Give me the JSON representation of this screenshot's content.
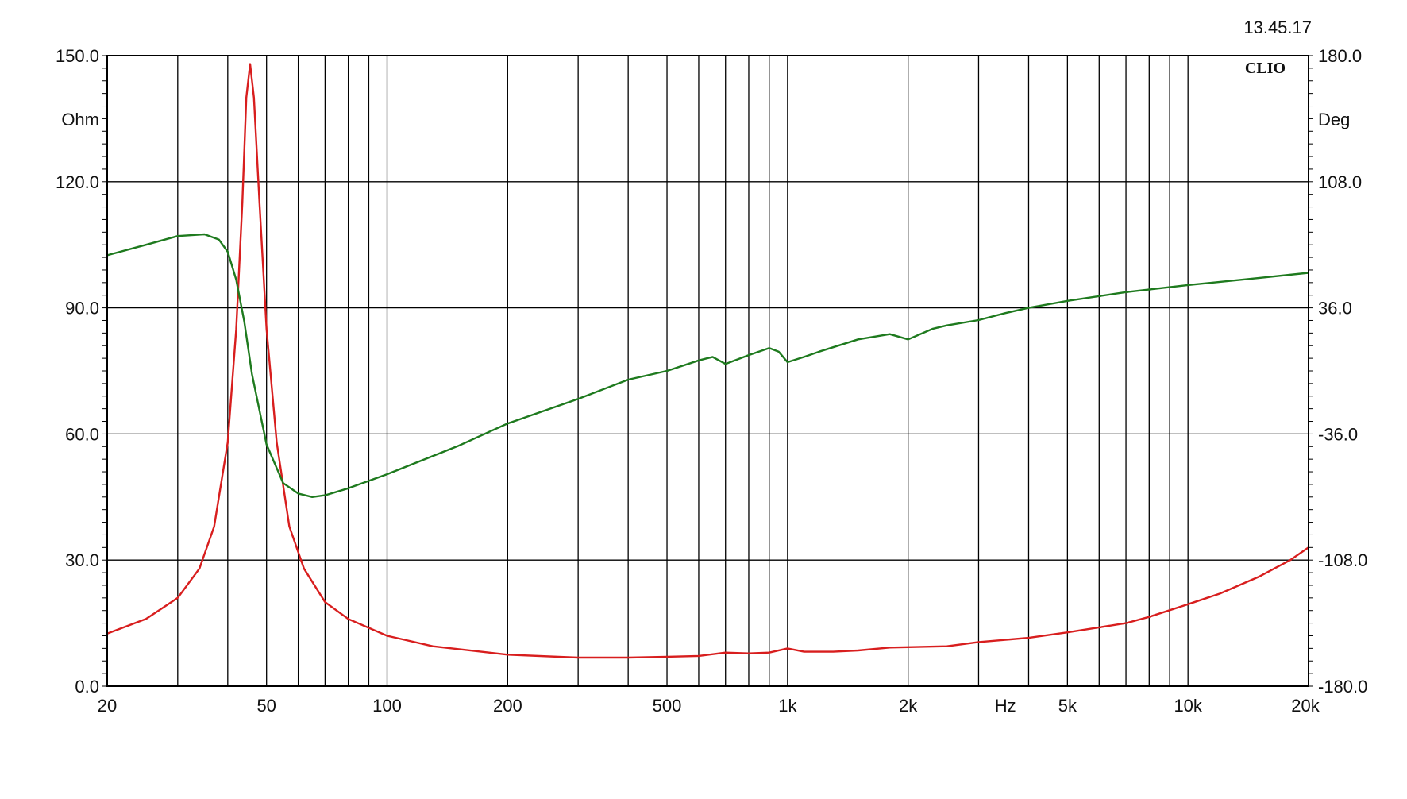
{
  "timestamp": "13.45.17",
  "brand": "CLIO",
  "chart_data": {
    "type": "line",
    "x_scale": "log",
    "xlim": [
      20,
      20000
    ],
    "x_unit": "Hz",
    "x_tick_labels": [
      {
        "value": 20,
        "label": "20"
      },
      {
        "value": 50,
        "label": "50"
      },
      {
        "value": 100,
        "label": "100"
      },
      {
        "value": 200,
        "label": "200"
      },
      {
        "value": 500,
        "label": "500"
      },
      {
        "value": 1000,
        "label": "1k"
      },
      {
        "value": 2000,
        "label": "2k"
      },
      {
        "value": 5000,
        "label": "5k"
      },
      {
        "value": 10000,
        "label": "10k"
      },
      {
        "value": 20000,
        "label": "20k"
      }
    ],
    "x_unit_at": 3500,
    "x_gridlines": [
      30,
      40,
      50,
      60,
      70,
      80,
      90,
      100,
      200,
      300,
      400,
      500,
      600,
      700,
      800,
      900,
      1000,
      2000,
      3000,
      4000,
      5000,
      6000,
      7000,
      8000,
      9000,
      10000
    ],
    "y_left": {
      "unit": "Ohm",
      "ylim": [
        0,
        150
      ],
      "ticks": [
        "0.0",
        "30.0",
        "60.0",
        "90.0",
        "120.0",
        "150.0"
      ],
      "tick_values": [
        0,
        30,
        60,
        90,
        120,
        150
      ]
    },
    "y_right": {
      "unit": "Deg",
      "ylim": [
        -180,
        180
      ],
      "ticks": [
        "-180.0",
        "-108.0",
        "-36.0",
        "36.0",
        "108.0",
        "180.0"
      ],
      "tick_values": [
        -180,
        -108,
        -36,
        36,
        108,
        180
      ]
    },
    "grid": true,
    "series": [
      {
        "axis": "left",
        "color": "#d81e1e",
        "points": [
          [
            20,
            12.5
          ],
          [
            25,
            16
          ],
          [
            30,
            21
          ],
          [
            34,
            28
          ],
          [
            37,
            38
          ],
          [
            40,
            58
          ],
          [
            42,
            85
          ],
          [
            43.5,
            115
          ],
          [
            44.5,
            140
          ],
          [
            45.5,
            148
          ],
          [
            46.5,
            140
          ],
          [
            48,
            115
          ],
          [
            50,
            85
          ],
          [
            53,
            58
          ],
          [
            57,
            38
          ],
          [
            62,
            28
          ],
          [
            70,
            20
          ],
          [
            80,
            16
          ],
          [
            100,
            12
          ],
          [
            130,
            9.5
          ],
          [
            200,
            7.5
          ],
          [
            300,
            6.8
          ],
          [
            400,
            6.8
          ],
          [
            500,
            7
          ],
          [
            600,
            7.2
          ],
          [
            700,
            8
          ],
          [
            800,
            7.8
          ],
          [
            900,
            8
          ],
          [
            1000,
            9
          ],
          [
            1100,
            8.2
          ],
          [
            1300,
            8.2
          ],
          [
            1500,
            8.5
          ],
          [
            1800,
            9.2
          ],
          [
            2000,
            9.3
          ],
          [
            2500,
            9.5
          ],
          [
            3000,
            10.5
          ],
          [
            4000,
            11.5
          ],
          [
            5000,
            12.8
          ],
          [
            6000,
            14
          ],
          [
            7000,
            15
          ],
          [
            8000,
            16.5
          ],
          [
            10000,
            19.5
          ],
          [
            12000,
            22
          ],
          [
            15000,
            26
          ],
          [
            18000,
            30
          ],
          [
            20000,
            33
          ]
        ]
      },
      {
        "axis": "right",
        "color": "#1e7a1e",
        "points": [
          [
            20,
            66
          ],
          [
            25,
            72
          ],
          [
            30,
            77
          ],
          [
            35,
            78
          ],
          [
            38,
            75
          ],
          [
            40,
            68
          ],
          [
            42,
            52
          ],
          [
            44,
            28
          ],
          [
            46,
            -2
          ],
          [
            50,
            -42
          ],
          [
            55,
            -64
          ],
          [
            60,
            -70
          ],
          [
            65,
            -72
          ],
          [
            70,
            -71
          ],
          [
            80,
            -67
          ],
          [
            100,
            -59
          ],
          [
            150,
            -43
          ],
          [
            200,
            -30
          ],
          [
            300,
            -16
          ],
          [
            400,
            -5
          ],
          [
            500,
            0
          ],
          [
            600,
            6
          ],
          [
            650,
            8
          ],
          [
            700,
            4
          ],
          [
            800,
            9
          ],
          [
            900,
            13
          ],
          [
            950,
            11
          ],
          [
            1000,
            5
          ],
          [
            1100,
            8
          ],
          [
            1200,
            11
          ],
          [
            1500,
            18
          ],
          [
            1800,
            21
          ],
          [
            2000,
            18
          ],
          [
            2300,
            24
          ],
          [
            2500,
            26
          ],
          [
            3000,
            29
          ],
          [
            3500,
            33
          ],
          [
            4000,
            36
          ],
          [
            5000,
            40
          ],
          [
            7000,
            45
          ],
          [
            10000,
            49
          ],
          [
            15000,
            53
          ],
          [
            20000,
            56
          ]
        ]
      }
    ]
  }
}
